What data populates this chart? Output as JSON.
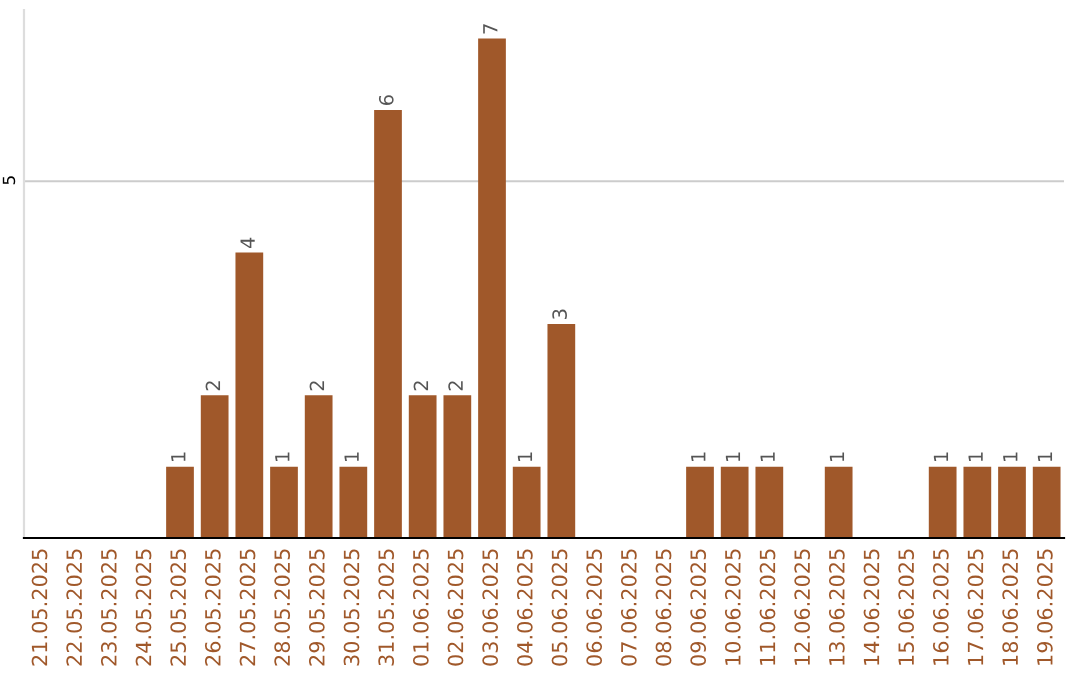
{
  "chart_data": {
    "type": "bar",
    "categories": [
      "21.05.2025",
      "22.05.2025",
      "23.05.2025",
      "24.05.2025",
      "25.05.2025",
      "26.05.2025",
      "27.05.2025",
      "28.05.2025",
      "29.05.2025",
      "30.05.2025",
      "31.05.2025",
      "01.06.2025",
      "02.06.2025",
      "03.06.2025",
      "04.06.2025",
      "05.06.2025",
      "06.06.2025",
      "07.06.2025",
      "08.06.2025",
      "09.06.2025",
      "10.06.2025",
      "11.06.2025",
      "12.06.2025",
      "13.06.2025",
      "14.06.2025",
      "15.06.2025",
      "16.06.2025",
      "17.06.2025",
      "18.06.2025",
      "19.06.2025"
    ],
    "values": [
      0,
      0,
      0,
      0,
      1,
      2,
      4,
      1,
      2,
      1,
      6,
      2,
      2,
      7,
      1,
      3,
      0,
      0,
      0,
      1,
      1,
      1,
      0,
      1,
      0,
      0,
      1,
      1,
      1,
      1
    ],
    "value_labels": [
      null,
      null,
      null,
      null,
      "1",
      "2",
      "4",
      "1",
      "2",
      "1",
      "6",
      "2",
      "2",
      "7",
      "1",
      "3",
      null,
      null,
      null,
      "1",
      "1",
      "1",
      null,
      "1",
      null,
      null,
      "1",
      "1",
      "1",
      "1"
    ],
    "color": "#a0582a",
    "ylim": [
      0,
      7.4
    ],
    "yticks": [
      5
    ],
    "grid": "y"
  }
}
